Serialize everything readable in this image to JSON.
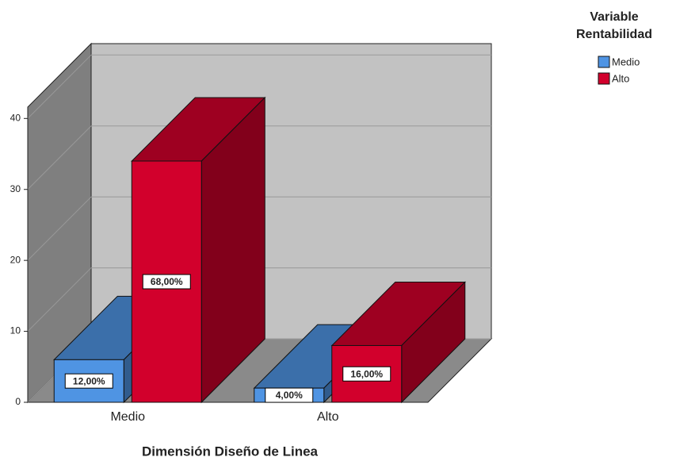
{
  "chart_data": {
    "type": "bar3d",
    "x_label": "Dimensión Diseño de Linea",
    "legend_title": "Variable Rentabilidad",
    "categories": [
      "Medio",
      "Alto"
    ],
    "series": [
      {
        "name": "Medio",
        "color": "#4f94e3",
        "values": [
          6,
          2
        ],
        "data_labels": [
          "12,00%",
          "4,00%"
        ]
      },
      {
        "name": "Alto",
        "color": "#d2002c",
        "values": [
          34,
          8
        ],
        "data_labels": [
          "68,00%",
          "16,00%"
        ]
      }
    ],
    "ylim": [
      0,
      41.6
    ],
    "yticks": [
      0,
      10,
      20,
      30,
      40
    ],
    "grid": true,
    "legend": "top-right"
  }
}
